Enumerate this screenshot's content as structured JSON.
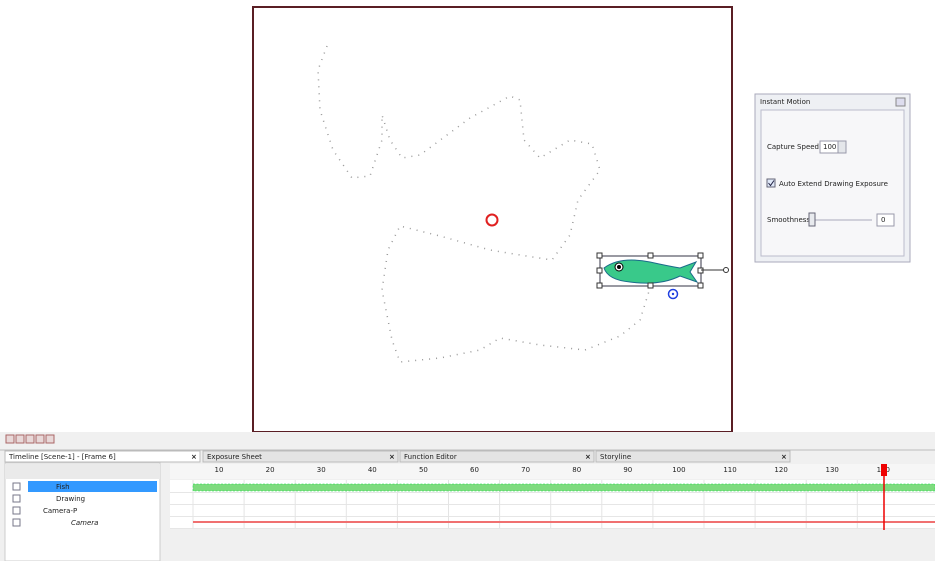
{
  "panel": {
    "title": "Instant Motion",
    "capture_speed_label": "Capture Speed:",
    "capture_speed_value": "100",
    "auto_extend_label": "Auto Extend Drawing Exposure",
    "smoothness_label": "Smoothness",
    "smoothness_value": "0"
  },
  "tabs": [
    "Timeline [Scene-1] - [Frame 6]",
    "Exposure Sheet",
    "Function Editor",
    "Storyline"
  ],
  "layers": [
    "Fish",
    "Drawing",
    "Camera-P",
    "Camera"
  ],
  "ruler": [
    "10",
    "20",
    "30",
    "40",
    "50",
    "60",
    "70",
    "80",
    "90",
    "100",
    "110",
    "120",
    "130",
    "140"
  ]
}
